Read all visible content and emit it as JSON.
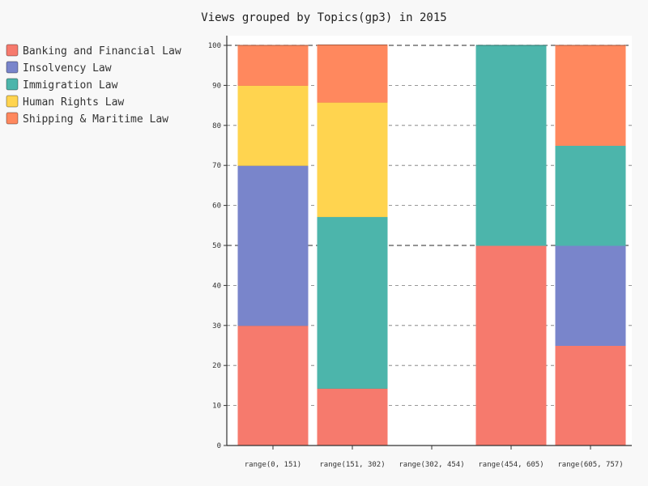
{
  "chart_data": {
    "type": "bar",
    "stacked": true,
    "title": "Views grouped by Topics(gp3) in 2015",
    "xlabel": "",
    "ylabel": "",
    "ylim": [
      0,
      100
    ],
    "yticks": [
      0,
      10,
      20,
      30,
      40,
      50,
      60,
      70,
      80,
      90,
      100
    ],
    "major_gridlines": [
      50,
      100
    ],
    "grid": true,
    "legend_position": "top-left",
    "categories": [
      "range(0, 151)",
      "range(151, 302)",
      "range(302, 454)",
      "range(454, 605)",
      "range(605, 757)"
    ],
    "series": [
      {
        "name": "Banking and Financial Law",
        "color": "#f67a6d",
        "values": [
          30,
          14.3,
          0,
          50,
          25
        ]
      },
      {
        "name": "Insolvency Law",
        "color": "#7985cb",
        "values": [
          40,
          0,
          0,
          0,
          25
        ]
      },
      {
        "name": "Immigration Law",
        "color": "#4cb5ab",
        "values": [
          0,
          42.9,
          0,
          50,
          25
        ]
      },
      {
        "name": "Human Rights Law",
        "color": "#ffd44f",
        "values": [
          20,
          28.6,
          0,
          0,
          0
        ]
      },
      {
        "name": "Shipping & Maritime Law",
        "color": "#ff885e",
        "values": [
          10,
          14.3,
          0,
          0,
          25
        ]
      }
    ]
  }
}
